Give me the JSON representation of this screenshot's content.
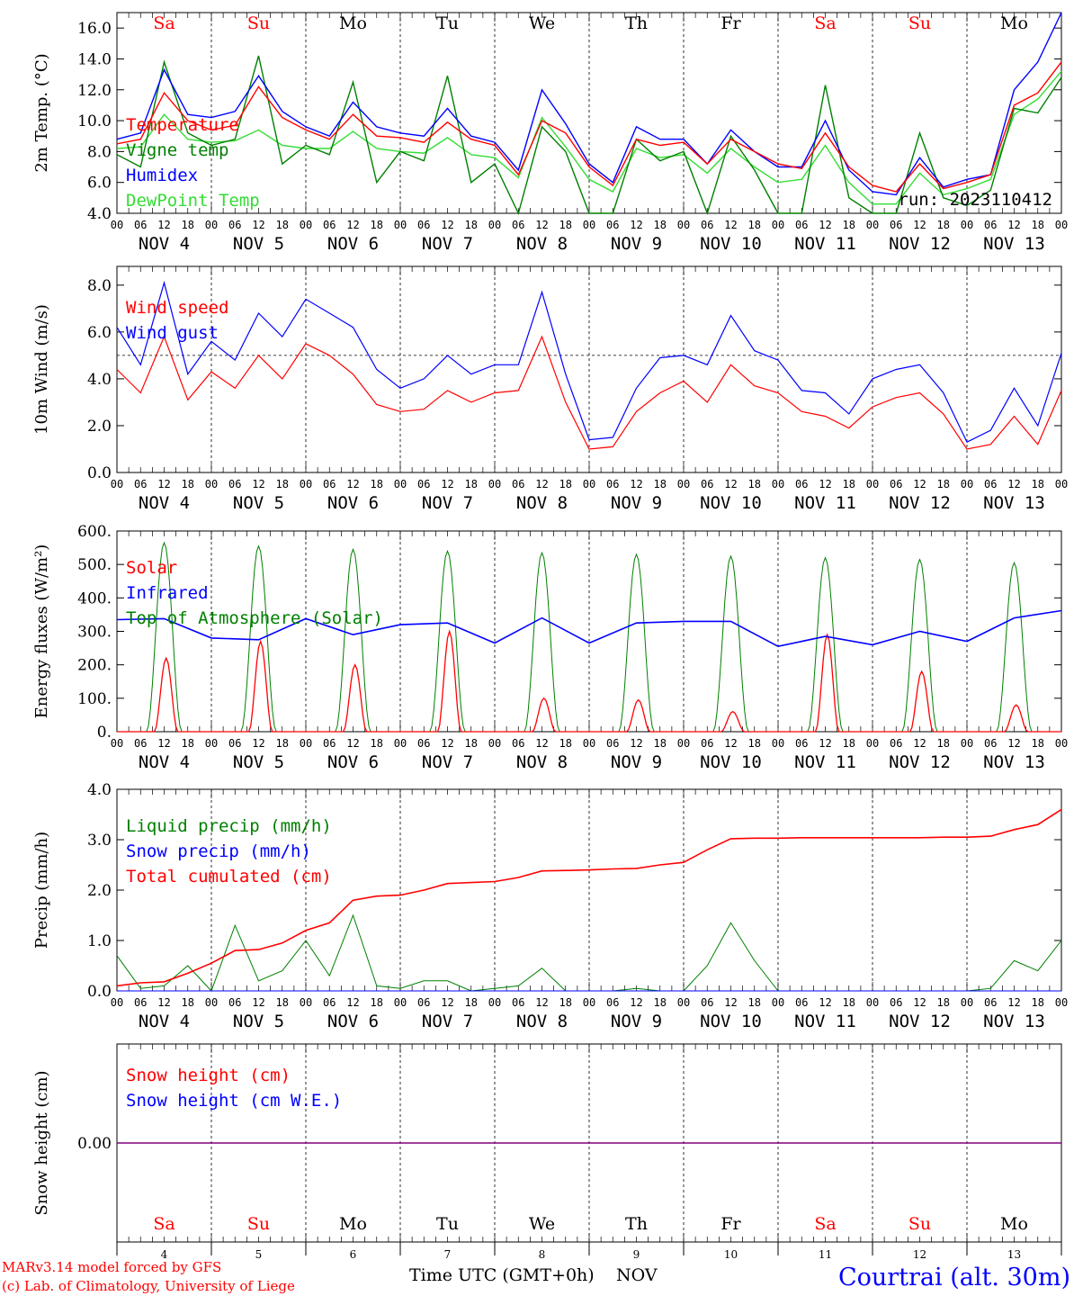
{
  "colors": {
    "red": "#ff0000",
    "green": "#008000",
    "blue": "#0000ff",
    "lightgreen": "#33dd33",
    "purple": "#800080",
    "text": "#000000"
  },
  "days": {
    "weekdays_top": [
      "Sa",
      "Su",
      "Mo",
      "Tu",
      "We",
      "Th",
      "Fr",
      "Sa",
      "Su",
      "Mo"
    ],
    "weekday_colors": [
      "red",
      "red",
      "black",
      "black",
      "black",
      "black",
      "black",
      "red",
      "red",
      "black"
    ],
    "date_labels": [
      "NOV  4",
      "NOV  5",
      "NOV  6",
      "NOV  7",
      "NOV  8",
      "NOV  9",
      "NOV 10",
      "NOV 11",
      "NOV 12",
      "NOV 13"
    ],
    "hour_ticks": [
      "00",
      "06",
      "12",
      "18"
    ],
    "hour_end": "00",
    "day_numbers": [
      "4",
      "5",
      "6",
      "7",
      "8",
      "9",
      "10",
      "11",
      "12",
      "13"
    ]
  },
  "footer": {
    "credit_line1": "MARv3.14 model forced by GFS",
    "credit_line2": "(c) Lab. of Climatology, University of Liege",
    "xlabel": "Time UTC (GMT+0h)",
    "month": "NOV",
    "station": "Courtrai (alt. 30m)"
  },
  "chart_data": [
    {
      "type": "line",
      "ylabel": "2m Temp. (°C)",
      "ylim": [
        4,
        17
      ],
      "yticks": [
        "4.0",
        "6.0",
        "8.0",
        "10.0",
        "12.0",
        "14.0",
        "16.0"
      ],
      "annotation": "run: 2023110412",
      "x_hours": [
        0,
        6,
        12,
        18,
        24,
        30,
        36,
        42,
        48,
        54,
        60,
        66,
        72,
        78,
        84,
        90,
        96,
        102,
        108,
        114,
        120,
        126,
        132,
        138,
        144,
        150,
        156,
        162,
        168,
        174,
        180,
        186,
        192,
        198,
        204,
        210,
        216,
        222,
        228,
        234,
        240
      ],
      "series": [
        {
          "name": "Temperature",
          "color": "red",
          "values": [
            8.5,
            8.8,
            11.8,
            10.0,
            9.4,
            9.7,
            12.2,
            10.2,
            9.4,
            8.8,
            10.4,
            9.0,
            8.9,
            8.6,
            9.9,
            8.8,
            8.4,
            6.5,
            10.0,
            9.2,
            7.0,
            5.8,
            8.8,
            8.4,
            8.6,
            7.2,
            8.8,
            8.0,
            7.2,
            6.9,
            9.2,
            7.0,
            5.8,
            5.4,
            7.2,
            5.6,
            6.0,
            6.5,
            11.0,
            11.8,
            13.8
          ]
        },
        {
          "name": "Vigne temp",
          "color": "green",
          "values": [
            7.8,
            7.0,
            13.8,
            9.2,
            8.4,
            8.8,
            14.2,
            7.2,
            8.4,
            7.8,
            12.5,
            6.0,
            8.0,
            7.4,
            12.9,
            6.0,
            7.2,
            4.0,
            9.6,
            8.0,
            4.0,
            4.0,
            8.8,
            7.4,
            8.0,
            4.0,
            9.0,
            6.8,
            4.0,
            4.0,
            12.3,
            5.0,
            4.0,
            4.0,
            9.2,
            5.0,
            4.5,
            5.5,
            10.8,
            10.5,
            12.8
          ]
        },
        {
          "name": "Humidex",
          "color": "blue",
          "values": [
            8.8,
            9.2,
            13.3,
            10.4,
            10.2,
            10.6,
            12.9,
            10.6,
            9.6,
            9.0,
            11.2,
            9.6,
            9.2,
            9.0,
            10.8,
            9.0,
            8.6,
            6.8,
            12.0,
            9.8,
            7.2,
            6.0,
            9.6,
            8.8,
            8.8,
            7.2,
            9.4,
            8.0,
            7.0,
            7.0,
            10.0,
            6.8,
            5.4,
            5.2,
            7.6,
            5.7,
            6.2,
            6.5,
            12.0,
            13.8,
            17.0
          ]
        },
        {
          "name": "DewPoint Temp",
          "color": "lightgreen",
          "values": [
            8.2,
            8.3,
            10.4,
            8.8,
            8.6,
            8.7,
            9.4,
            8.4,
            8.2,
            8.2,
            9.3,
            8.2,
            8.0,
            7.9,
            8.9,
            7.8,
            7.6,
            6.3,
            10.2,
            8.3,
            6.2,
            5.4,
            8.2,
            7.6,
            7.8,
            6.6,
            8.2,
            7.0,
            6.0,
            6.2,
            8.4,
            6.0,
            4.6,
            4.6,
            6.6,
            5.2,
            5.6,
            6.2,
            10.4,
            11.4,
            13.2
          ]
        }
      ]
    },
    {
      "type": "line",
      "ylabel": "10m Wind (m/s)",
      "ylim": [
        0,
        8.8
      ],
      "yticks": [
        "0.0",
        "2.0",
        "4.0",
        "6.0",
        "8.0"
      ],
      "reference_line": 5.0,
      "x_hours": [
        0,
        6,
        12,
        18,
        24,
        30,
        36,
        42,
        48,
        54,
        60,
        66,
        72,
        78,
        84,
        90,
        96,
        102,
        108,
        114,
        120,
        126,
        132,
        138,
        144,
        150,
        156,
        162,
        168,
        174,
        180,
        186,
        192,
        198,
        204,
        210,
        216,
        222,
        228,
        234,
        240
      ],
      "series": [
        {
          "name": "Wind speed",
          "color": "red",
          "values": [
            4.4,
            3.4,
            5.8,
            3.1,
            4.3,
            3.6,
            5.0,
            4.0,
            5.5,
            5.0,
            4.2,
            2.9,
            2.6,
            2.7,
            3.5,
            3.0,
            3.4,
            3.5,
            5.8,
            3.0,
            1.0,
            1.1,
            2.6,
            3.4,
            3.9,
            3.0,
            4.6,
            3.7,
            3.4,
            2.6,
            2.4,
            1.9,
            2.8,
            3.2,
            3.4,
            2.5,
            1.0,
            1.2,
            2.4,
            1.2,
            3.5
          ]
        },
        {
          "name": "Wind gust",
          "color": "blue",
          "values": [
            6.2,
            4.6,
            8.1,
            4.2,
            5.6,
            4.8,
            6.8,
            5.8,
            7.4,
            6.8,
            6.2,
            4.4,
            3.6,
            4.0,
            5.0,
            4.2,
            4.6,
            4.6,
            7.7,
            4.2,
            1.4,
            1.5,
            3.6,
            4.9,
            5.0,
            4.6,
            6.7,
            5.2,
            4.8,
            3.5,
            3.4,
            2.5,
            4.0,
            4.4,
            4.6,
            3.4,
            1.3,
            1.8,
            3.6,
            2.0,
            5.1
          ]
        }
      ]
    },
    {
      "type": "line",
      "ylabel": "Energy fluxes (W/m²)",
      "ylim": [
        0,
        600
      ],
      "yticks": [
        "0.",
        "100.",
        "200.",
        "300.",
        "400.",
        "500.",
        "600."
      ],
      "day_peaks": {
        "Top of Atmosphere (Solar)": [
          565,
          555,
          545,
          540,
          535,
          530,
          525,
          520,
          515,
          505
        ],
        "Solar": [
          220,
          270,
          200,
          300,
          100,
          95,
          60,
          290,
          180,
          80
        ]
      },
      "series": [
        {
          "name": "Solar",
          "color": "red"
        },
        {
          "name": "Infrared",
          "color": "blue",
          "x_hours": [
            0,
            12,
            24,
            36,
            48,
            60,
            72,
            84,
            96,
            108,
            120,
            132,
            144,
            156,
            168,
            180,
            192,
            204,
            216,
            228,
            240
          ],
          "values": [
            335,
            338,
            280,
            275,
            338,
            290,
            320,
            325,
            265,
            340,
            265,
            325,
            330,
            330,
            255,
            285,
            260,
            300,
            270,
            340,
            362
          ]
        },
        {
          "name": "Top of Atmosphere (Solar)",
          "color": "green"
        }
      ]
    },
    {
      "type": "line",
      "ylabel": "Precip (mm/h)",
      "ylim": [
        0,
        4
      ],
      "yticks": [
        "0.0",
        "1.0",
        "2.0",
        "3.0",
        "4.0"
      ],
      "x_hours": [
        0,
        6,
        12,
        18,
        24,
        30,
        36,
        42,
        48,
        54,
        60,
        66,
        72,
        78,
        84,
        90,
        96,
        102,
        108,
        114,
        120,
        126,
        132,
        138,
        144,
        150,
        156,
        162,
        168,
        174,
        180,
        186,
        192,
        198,
        204,
        210,
        216,
        222,
        228,
        234,
        240
      ],
      "series": [
        {
          "name": "Liquid precip (mm/h)",
          "color": "green",
          "values": [
            0.7,
            0.05,
            0.1,
            0.5,
            0.0,
            1.3,
            0.2,
            0.4,
            1.0,
            0.3,
            1.5,
            0.1,
            0.05,
            0.2,
            0.2,
            0.0,
            0.05,
            0.1,
            0.45,
            0.0,
            0.0,
            0.0,
            0.05,
            0.0,
            0.0,
            0.5,
            1.35,
            0.6,
            0.0,
            0.0,
            0.0,
            0.0,
            0.0,
            0.0,
            0.0,
            0.0,
            0.0,
            0.05,
            0.6,
            0.4,
            1.0
          ]
        },
        {
          "name": "Snow precip (mm/h)",
          "color": "blue",
          "values": [
            0,
            0,
            0,
            0,
            0,
            0,
            0,
            0,
            0,
            0,
            0,
            0,
            0,
            0,
            0,
            0,
            0,
            0,
            0,
            0,
            0,
            0,
            0,
            0,
            0,
            0,
            0,
            0,
            0,
            0,
            0,
            0,
            0,
            0,
            0,
            0,
            0,
            0,
            0,
            0,
            0
          ]
        },
        {
          "name": "Total cumulated (cm)",
          "color": "red",
          "values": [
            0.1,
            0.16,
            0.18,
            0.35,
            0.55,
            0.8,
            0.82,
            0.95,
            1.2,
            1.35,
            1.8,
            1.88,
            1.9,
            2.0,
            2.13,
            2.15,
            2.17,
            2.25,
            2.38,
            2.39,
            2.4,
            2.42,
            2.43,
            2.5,
            2.55,
            2.8,
            3.02,
            3.03,
            3.03,
            3.04,
            3.04,
            3.04,
            3.04,
            3.04,
            3.04,
            3.05,
            3.05,
            3.07,
            3.2,
            3.3,
            3.6
          ]
        }
      ]
    },
    {
      "type": "line",
      "ylabel": "Snow height (cm)",
      "ylim": [
        -1,
        1
      ],
      "yticks": [
        "0.00"
      ],
      "series": [
        {
          "name": "Snow height (cm)",
          "color": "red",
          "values": [
            0,
            0
          ]
        },
        {
          "name": "Snow height (cm W.E.)",
          "color": "blue",
          "values": [
            0,
            0
          ]
        }
      ]
    }
  ]
}
